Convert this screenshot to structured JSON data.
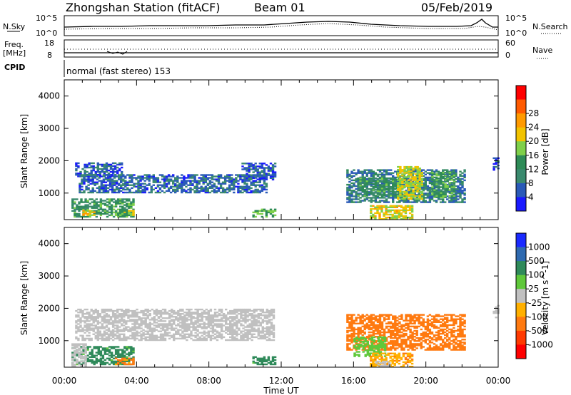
{
  "header": {
    "title": "Zhongshan Station (fitACF)",
    "beam": "Beam 01",
    "date": "05/Feb/2019"
  },
  "strip": {
    "nsky_label": "N.Sky",
    "nsky_ticks": [
      "10^5",
      "10^0"
    ],
    "nsearch_label": "N.Search",
    "nsearch_ticks": [
      "10^5",
      "10^0"
    ],
    "freq_label": "Freq.",
    "freq_unit": "[MHz]",
    "freq_ticks": [
      "18",
      "8"
    ],
    "nave_label": "Nave",
    "nave_ticks": [
      "60",
      "0"
    ],
    "cpid_label": "CPID",
    "cpid_text": "normal (fast stereo) 153"
  },
  "chart_data": [
    {
      "type": "heatmap",
      "parameter": "Power",
      "ylabel": "Slant Range [km]",
      "xlabel": "Time UT",
      "x_ticks": [
        "00:00",
        "04:00",
        "08:00",
        "12:00",
        "16:00",
        "20:00",
        "00:00"
      ],
      "xlim_hours": [
        0,
        24
      ],
      "ylim_km": [
        180,
        4500
      ],
      "y_ticks": [
        1000,
        2000,
        3000,
        4000
      ],
      "colorbar": {
        "label": "Power [dB]",
        "ticks": [
          "4",
          "8",
          "12",
          "16",
          "20",
          "24",
          "28"
        ],
        "levels": [
          0,
          4,
          8,
          12,
          16,
          20,
          24,
          28,
          30
        ],
        "colors": [
          "#1a1aff",
          "#2a5ab8",
          "#3a8a6e",
          "#2e8b57",
          "#7fd04a",
          "#f2c300",
          "#ff9a00",
          "#ff5a00",
          "#ff0000"
        ]
      },
      "regions": [
        {
          "t": [
            0.6,
            3.2
          ],
          "r": [
            1500,
            1950
          ],
          "v": 6
        },
        {
          "t": [
            0.8,
            11.2
          ],
          "r": [
            1000,
            1550
          ],
          "v": 7
        },
        {
          "t": [
            9.8,
            11.6
          ],
          "r": [
            1400,
            1900
          ],
          "v": 6
        },
        {
          "t": [
            0.4,
            3.8
          ],
          "r": [
            250,
            800
          ],
          "v": 13
        },
        {
          "t": [
            1.0,
            1.7
          ],
          "r": [
            300,
            480
          ],
          "v": 22
        },
        {
          "t": [
            2.8,
            3.8
          ],
          "r": [
            300,
            480
          ],
          "v": 18
        },
        {
          "t": [
            10.4,
            11.7
          ],
          "r": [
            250,
            520
          ],
          "v": 16
        },
        {
          "t": [
            15.6,
            22.1
          ],
          "r": [
            700,
            1700
          ],
          "v": 9
        },
        {
          "t": [
            16.2,
            18.6
          ],
          "r": [
            900,
            1450
          ],
          "v": 13
        },
        {
          "t": [
            18.4,
            19.8
          ],
          "r": [
            800,
            1800
          ],
          "v": 20
        },
        {
          "t": [
            16.9,
            19.2
          ],
          "r": [
            180,
            600
          ],
          "v": 21
        },
        {
          "t": [
            20.3,
            21.6
          ],
          "r": [
            850,
            1650
          ],
          "v": 14
        },
        {
          "t": [
            23.7,
            24.0
          ],
          "r": [
            1700,
            2100
          ],
          "v": 6
        }
      ]
    },
    {
      "type": "heatmap",
      "parameter": "Velocity",
      "ylabel": "Slant Range [km]",
      "xlabel": "Time UT",
      "x_ticks": [
        "00:00",
        "04:00",
        "08:00",
        "12:00",
        "16:00",
        "20:00",
        "00:00"
      ],
      "xlim_hours": [
        0,
        24
      ],
      "ylim_km": [
        180,
        4500
      ],
      "y_ticks": [
        1000,
        2000,
        3000,
        4000
      ],
      "colorbar": {
        "label": "Velocity [m s^-1]",
        "ticks": [
          "1000",
          "500",
          "100",
          "25",
          "-25",
          "-100",
          "-500",
          "-1000"
        ],
        "colors": [
          "#1a2aff",
          "#2f6ab0",
          "#2f8a5a",
          "#5fc83a",
          "#c0c0c0",
          "#ffb000",
          "#ff7a10",
          "#ff3a00",
          "#ff0000"
        ]
      },
      "regions": [
        {
          "t": [
            0.6,
            11.6
          ],
          "r": [
            1000,
            1950
          ],
          "v": 0
        },
        {
          "t": [
            0.4,
            3.8
          ],
          "r": [
            250,
            800
          ],
          "v": 150
        },
        {
          "t": [
            0.4,
            1.2
          ],
          "r": [
            200,
            900
          ],
          "v": 0
        },
        {
          "t": [
            2.8,
            3.8
          ],
          "r": [
            250,
            450
          ],
          "v": -150
        },
        {
          "t": [
            10.4,
            11.7
          ],
          "r": [
            250,
            520
          ],
          "v": 150
        },
        {
          "t": [
            15.6,
            22.1
          ],
          "r": [
            700,
            1800
          ],
          "v": -300
        },
        {
          "t": [
            16.0,
            17.8
          ],
          "r": [
            500,
            1100
          ],
          "v": 60
        },
        {
          "t": [
            16.9,
            19.2
          ],
          "r": [
            180,
            600
          ],
          "v": -80
        },
        {
          "t": [
            17.2,
            18.0
          ],
          "r": [
            200,
            350
          ],
          "v": 0
        },
        {
          "t": [
            23.7,
            24.0
          ],
          "r": [
            1700,
            2100
          ],
          "v": 0
        }
      ]
    }
  ]
}
